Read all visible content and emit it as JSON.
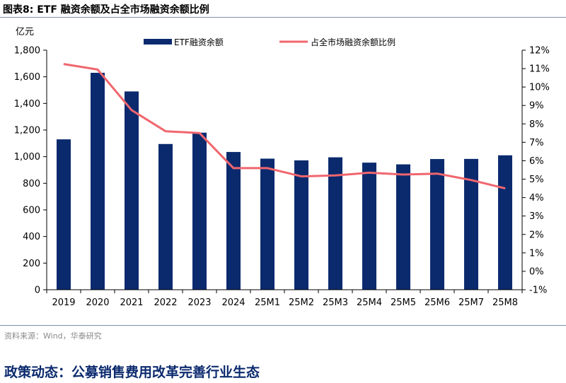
{
  "figure_title": "图表8:  ETF 融资余额及占全市场融资余额比例",
  "source": "资料来源：Wind，华泰研究",
  "headline": "政策动态：公募销售费用改革完善行业生态",
  "colors": {
    "bar": "#0b2a6e",
    "line": "#f0666e",
    "axis": "#000000",
    "headline": "#0b2a6e",
    "rule": "#7f8fa6"
  },
  "chart_data": {
    "type": "bar",
    "y_unit_label": "亿元",
    "categories": [
      "2019",
      "2020",
      "2021",
      "2022",
      "2023",
      "2024",
      "25M1",
      "25M2",
      "25M3",
      "25M4",
      "25M5",
      "25M6",
      "25M7",
      "25M8"
    ],
    "legend_position": "top",
    "grid": false,
    "series": [
      {
        "name": "ETF融资余额",
        "type": "bar",
        "axis": "left",
        "values": [
          1130,
          1630,
          1490,
          1095,
          1180,
          1035,
          985,
          972,
          995,
          955,
          942,
          982,
          983,
          1010
        ]
      },
      {
        "name": "占全市场融资余额比例",
        "type": "line",
        "axis": "right",
        "values": [
          11.25,
          10.95,
          8.75,
          7.6,
          7.5,
          5.6,
          5.6,
          5.15,
          5.2,
          5.35,
          5.25,
          5.3,
          4.95,
          4.5
        ]
      }
    ],
    "left_axis": {
      "min": 0,
      "max": 1800,
      "ticks": [
        0,
        200,
        400,
        600,
        800,
        1000,
        1200,
        1400,
        1600,
        1800
      ],
      "tick_labels": [
        "0",
        "200",
        "400",
        "600",
        "800",
        "1,000",
        "1,200",
        "1,400",
        "1,600",
        "1,800"
      ]
    },
    "right_axis": {
      "min": -1,
      "max": 12,
      "ticks": [
        -1,
        0,
        1,
        2,
        3,
        4,
        5,
        6,
        7,
        8,
        9,
        10,
        11,
        12
      ],
      "tick_labels": [
        "-1%",
        "0%",
        "1%",
        "2%",
        "3%",
        "4%",
        "5%",
        "6%",
        "7%",
        "8%",
        "9%",
        "10%",
        "11%",
        "12%"
      ]
    }
  }
}
